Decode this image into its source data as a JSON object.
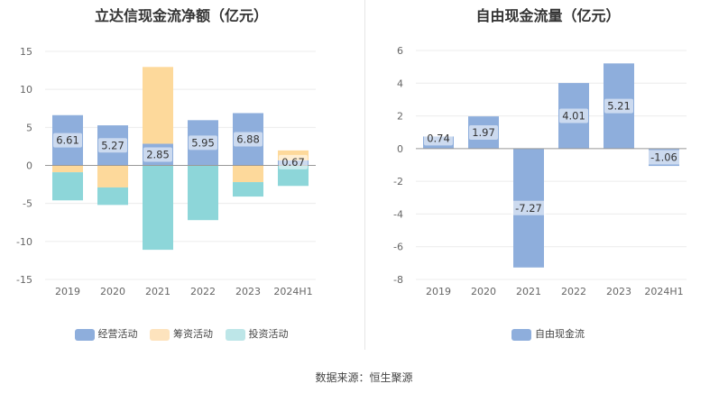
{
  "footer": {
    "source": "数据来源：恒生聚源"
  },
  "chart_data": [
    {
      "type": "bar",
      "stacked": true,
      "title": "立达信现金流净额（亿元）",
      "categories": [
        "2019",
        "2020",
        "2021",
        "2022",
        "2023",
        "2024H1"
      ],
      "ylim": [
        -15,
        15
      ],
      "yticks": [
        -15,
        -10,
        -5,
        0,
        5,
        10,
        15
      ],
      "grid": true,
      "legend_position": "bottom",
      "series": [
        {
          "name": "经营活动",
          "color": "#8eaedc",
          "values": [
            6.61,
            5.27,
            2.85,
            5.95,
            6.88,
            0.67
          ]
        },
        {
          "name": "筹资活动",
          "color": "#fdd99b",
          "values": [
            -0.9,
            -2.9,
            10.1,
            0,
            -2.2,
            1.3
          ]
        },
        {
          "name": "投资活动",
          "color": "#8dd6d9",
          "values": [
            -3.7,
            -2.3,
            -11.1,
            -7.2,
            -1.9,
            -2.7
          ]
        }
      ],
      "data_labels": [
        "6.61",
        "5.27",
        "2.85",
        "5.95",
        "6.88",
        "0.67"
      ]
    },
    {
      "type": "bar",
      "title": "自由现金流量（亿元）",
      "categories": [
        "2019",
        "2020",
        "2021",
        "2022",
        "2023",
        "2024H1"
      ],
      "ylim": [
        -8,
        6
      ],
      "yticks": [
        -8,
        -6,
        -4,
        -2,
        0,
        2,
        4,
        6
      ],
      "grid": true,
      "legend_position": "bottom",
      "series": [
        {
          "name": "自由现金流",
          "color": "#8eaedc",
          "values": [
            0.74,
            1.97,
            -7.27,
            4.01,
            5.21,
            -1.06
          ]
        }
      ],
      "data_labels": [
        "0.74",
        "1.97",
        "-7.27",
        "4.01",
        "5.21",
        "-1.06"
      ]
    }
  ]
}
